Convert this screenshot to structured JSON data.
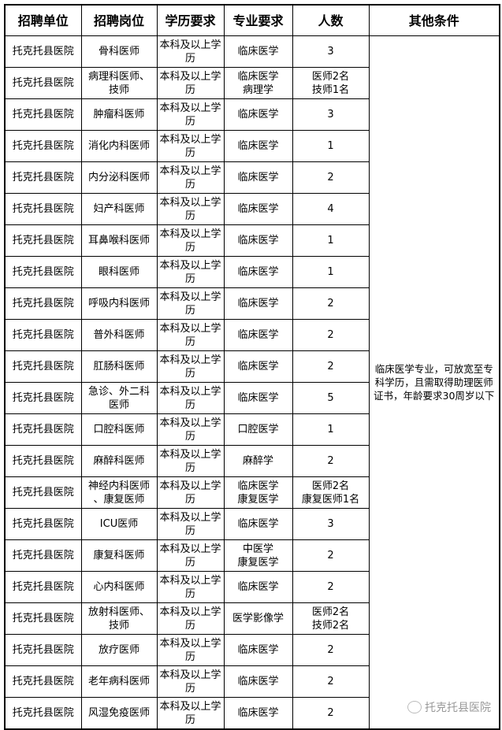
{
  "headers": [
    "招聘单位",
    "招聘岗位",
    "学历要求",
    "专业要求",
    "人数",
    "其他条件"
  ],
  "other_conditions": "临床医学专业，可放宽至专科学历，且需取得助理医师证书，年龄要求30周岁以下",
  "rows": [
    {
      "unit": "托克托县医院",
      "post": "骨科医师",
      "edu": "本科及以上学历",
      "major": "临床医学",
      "count": "3"
    },
    {
      "unit": "托克托县医院",
      "post": "病理科医师、\n技师",
      "edu": "本科及以上学历",
      "major": "临床医学\n病理学",
      "count": "医师2名\n技师1名"
    },
    {
      "unit": "托克托县医院",
      "post": "肿瘤科医师",
      "edu": "本科及以上学历",
      "major": "临床医学",
      "count": "3"
    },
    {
      "unit": "托克托县医院",
      "post": "消化内科医师",
      "edu": "本科及以上学历",
      "major": "临床医学",
      "count": "1"
    },
    {
      "unit": "托克托县医院",
      "post": "内分泌科医师",
      "edu": "本科及以上学历",
      "major": "临床医学",
      "count": "2"
    },
    {
      "unit": "托克托县医院",
      "post": "妇产科医师",
      "edu": "本科及以上学历",
      "major": "临床医学",
      "count": "4"
    },
    {
      "unit": "托克托县医院",
      "post": "耳鼻喉科医师",
      "edu": "本科及以上学历",
      "major": "临床医学",
      "count": "1"
    },
    {
      "unit": "托克托县医院",
      "post": "眼科医师",
      "edu": "本科及以上学历",
      "major": "临床医学",
      "count": "1"
    },
    {
      "unit": "托克托县医院",
      "post": "呼吸内科医师",
      "edu": "本科及以上学历",
      "major": "临床医学",
      "count": "2"
    },
    {
      "unit": "托克托县医院",
      "post": "普外科医师",
      "edu": "本科及以上学历",
      "major": "临床医学",
      "count": "2"
    },
    {
      "unit": "托克托县医院",
      "post": "肛肠科医师",
      "edu": "本科及以上学历",
      "major": "临床医学",
      "count": "2"
    },
    {
      "unit": "托克托县医院",
      "post": "急诊、外二科\n医师",
      "edu": "本科及以上学历",
      "major": "临床医学",
      "count": "5"
    },
    {
      "unit": "托克托县医院",
      "post": "口腔科医师",
      "edu": "本科及以上学历",
      "major": "口腔医学",
      "count": "1"
    },
    {
      "unit": "托克托县医院",
      "post": "麻醉科医师",
      "edu": "本科及以上学历",
      "major": "麻醉学",
      "count": "2"
    },
    {
      "unit": "托克托县医院",
      "post": "神经内科医师\n、康复医师",
      "edu": "本科及以上学历",
      "major": "临床医学\n康复医学",
      "count": "医师2名\n康复医师1名"
    },
    {
      "unit": "托克托县医院",
      "post": "ICU医师",
      "edu": "本科及以上学历",
      "major": "临床医学",
      "count": "3"
    },
    {
      "unit": "托克托县医院",
      "post": "康复科医师",
      "edu": "本科及以上学历",
      "major": "中医学\n康复医学",
      "count": "2"
    },
    {
      "unit": "托克托县医院",
      "post": "心内科医师",
      "edu": "本科及以上学历",
      "major": "临床医学",
      "count": "2"
    },
    {
      "unit": "托克托县医院",
      "post": "放射科医师、\n技师",
      "edu": "本科及以上学历",
      "major": "医学影像学",
      "count": "医师2名\n技师2名"
    },
    {
      "unit": "托克托县医院",
      "post": "放疗医师",
      "edu": "本科及以上学历",
      "major": "临床医学",
      "count": "2"
    },
    {
      "unit": "托克托县医院",
      "post": "老年病科医师",
      "edu": "本科及以上学历",
      "major": "临床医学",
      "count": "2"
    },
    {
      "unit": "托克托县医院",
      "post": "风湿免疫医师",
      "edu": "本科及以上学历",
      "major": "临床医学",
      "count": "2"
    }
  ],
  "watermark": "托克托县医院"
}
